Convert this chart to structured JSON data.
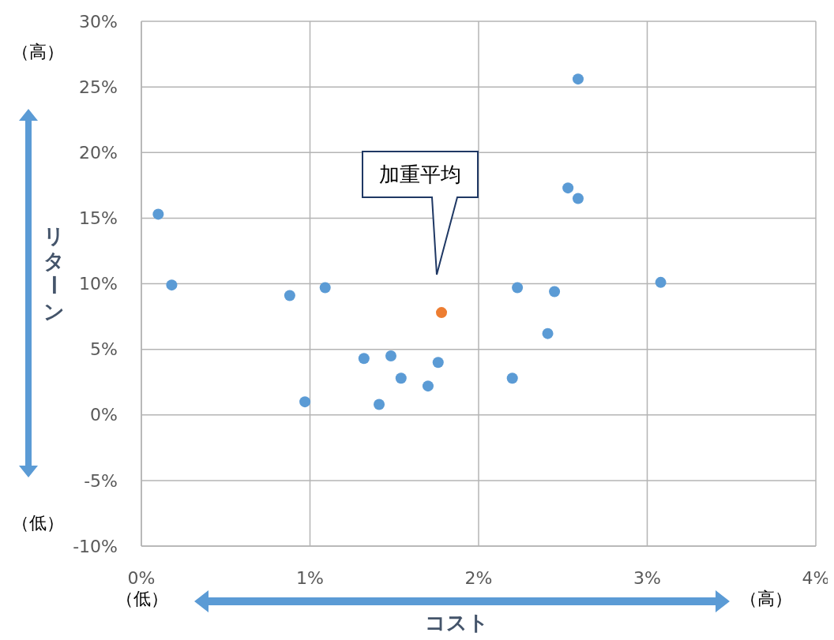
{
  "chart_data": {
    "type": "scatter",
    "xlabel": "コスト",
    "ylabel": "リターン",
    "xlim": [
      0,
      4
    ],
    "ylim": [
      -10,
      30
    ],
    "xticks": [
      {
        "value": 0,
        "label": "0%"
      },
      {
        "value": 1,
        "label": "1%"
      },
      {
        "value": 2,
        "label": "2%"
      },
      {
        "value": 3,
        "label": "3%"
      },
      {
        "value": 4,
        "label": "4%"
      }
    ],
    "yticks": [
      {
        "value": -10,
        "label": "-10%"
      },
      {
        "value": -5,
        "label": "-5%"
      },
      {
        "value": 0,
        "label": "0%"
      },
      {
        "value": 5,
        "label": "5%"
      },
      {
        "value": 10,
        "label": "10%"
      },
      {
        "value": 15,
        "label": "15%"
      },
      {
        "value": 20,
        "label": "20%"
      },
      {
        "value": 25,
        "label": "25%"
      },
      {
        "value": 30,
        "label": "30%"
      }
    ],
    "grid": true,
    "marker": "circle",
    "series": [
      {
        "color": "#5b9bd5",
        "x": [
          0.1,
          0.18,
          0.88,
          1.09,
          0.97,
          1.32,
          1.48,
          1.41,
          1.54,
          1.7,
          1.76,
          2.2,
          2.23,
          2.41,
          2.45,
          2.53,
          2.59,
          2.59,
          3.08
        ],
        "values": [
          15.3,
          9.9,
          9.1,
          9.7,
          1.0,
          4.3,
          4.5,
          0.8,
          2.8,
          2.2,
          4.0,
          2.8,
          9.7,
          6.2,
          9.4,
          17.3,
          25.6,
          16.5,
          10.1
        ]
      },
      {
        "color": "#ed7d31",
        "x": [
          1.78
        ],
        "values": [
          7.8
        ]
      }
    ],
    "annotations": [
      "加重平均",
      "（高）",
      "（低）",
      "（低）",
      "（高）"
    ]
  }
}
